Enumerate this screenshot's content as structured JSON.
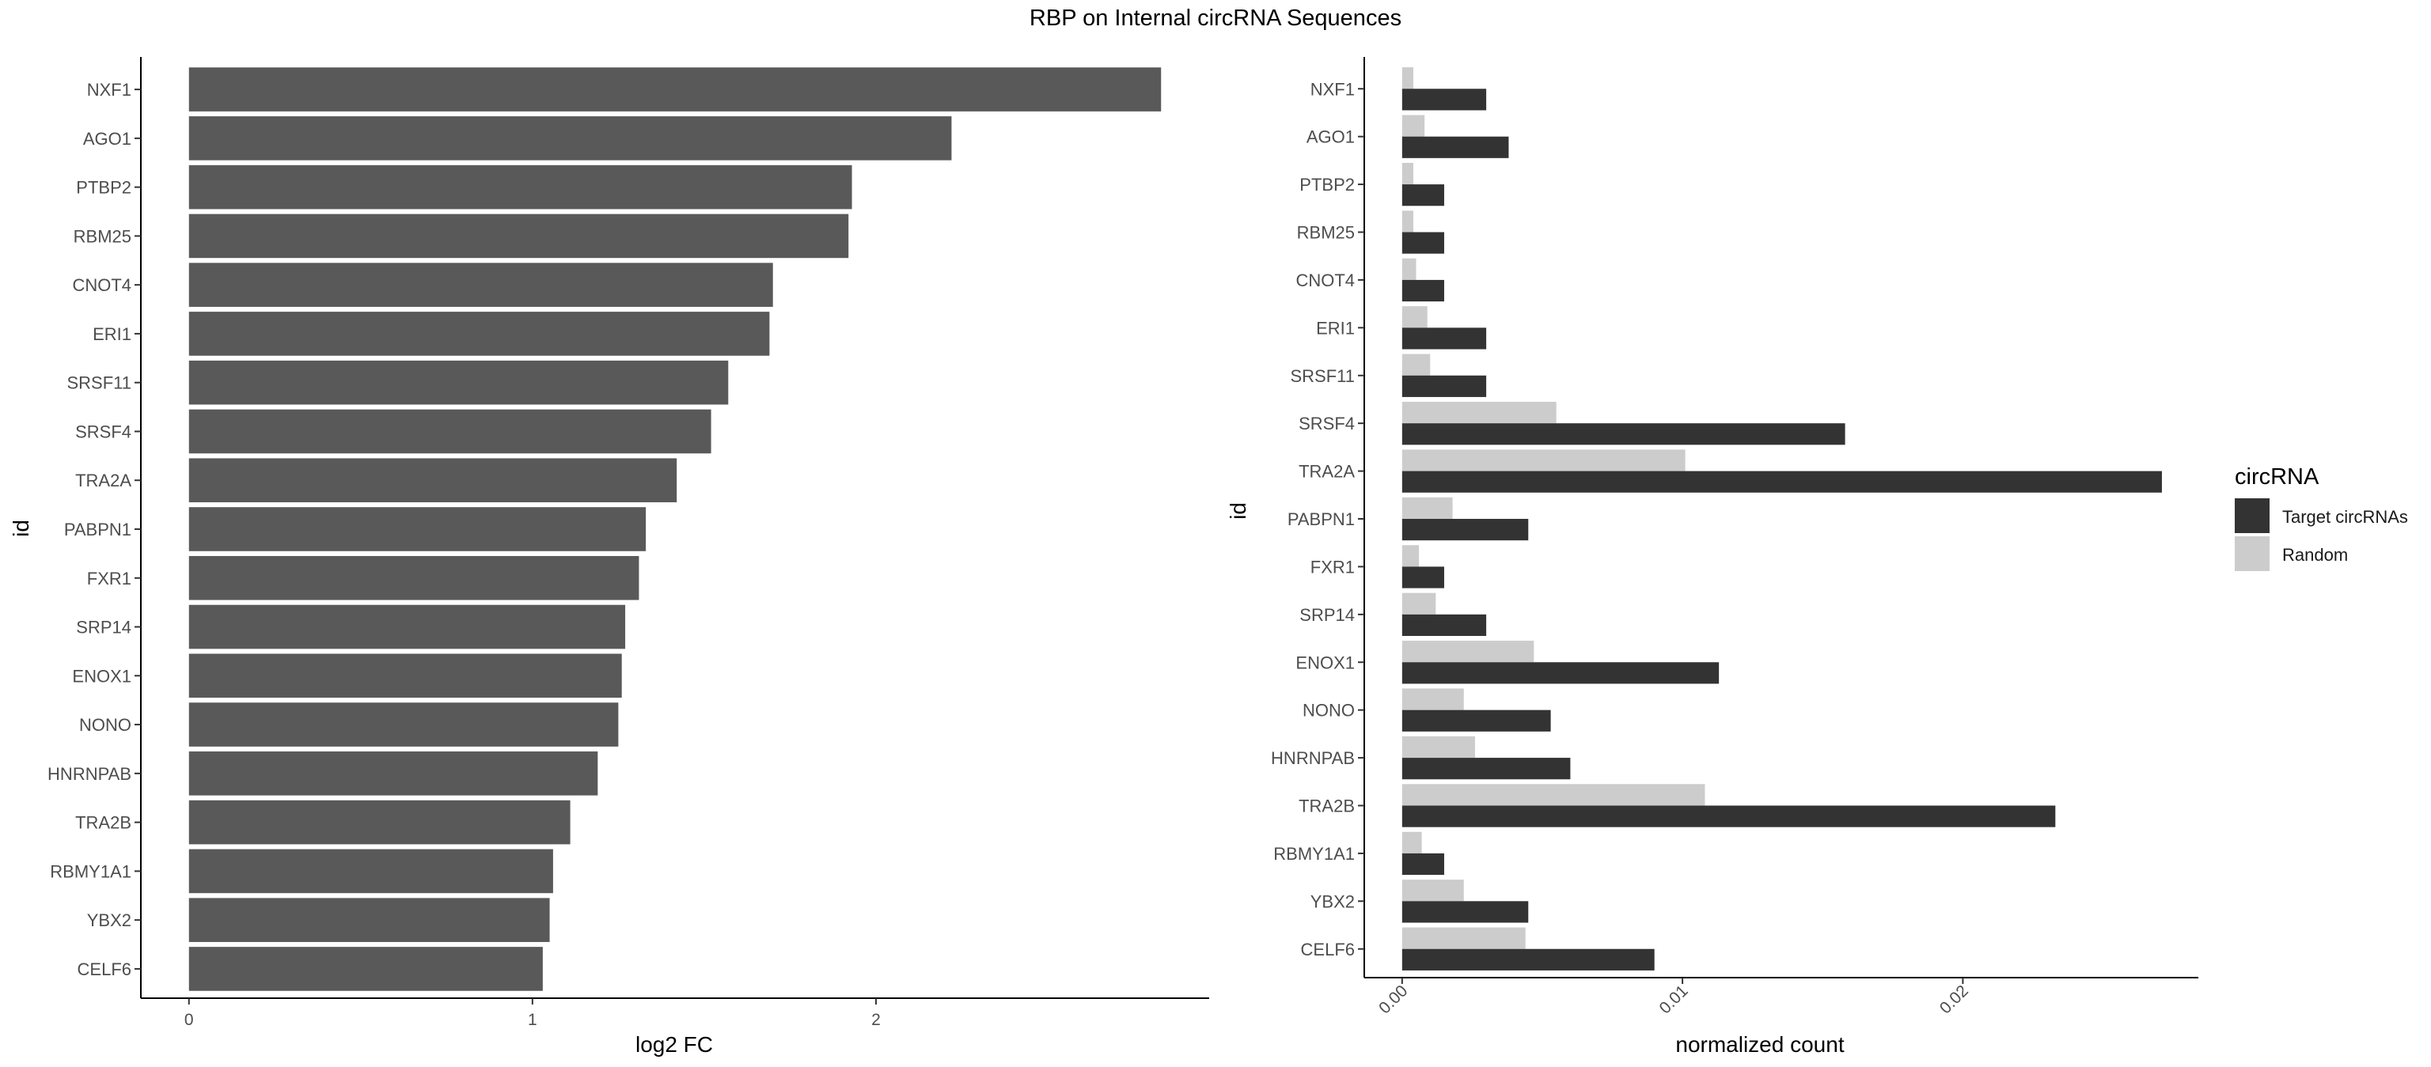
{
  "title": "RBP on Internal circRNA Sequences",
  "chart_data": [
    {
      "type": "bar",
      "orientation": "horizontal",
      "categories": [
        "NXF1",
        "AGO1",
        "PTBP2",
        "RBM25",
        "CNOT4",
        "ERI1",
        "SRSF11",
        "SRSF4",
        "TRA2A",
        "PABPN1",
        "FXR1",
        "SRP14",
        "ENOX1",
        "NONO",
        "HNRNPAB",
        "TRA2B",
        "RBMY1A1",
        "YBX2",
        "CELF6"
      ],
      "values": [
        2.83,
        2.22,
        1.93,
        1.92,
        1.7,
        1.69,
        1.57,
        1.52,
        1.42,
        1.33,
        1.31,
        1.27,
        1.26,
        1.25,
        1.19,
        1.11,
        1.06,
        1.05,
        1.03
      ],
      "xlabel": "log2 FC",
      "ylabel": "id",
      "xlim": [
        -0.14,
        2.97
      ],
      "xticks": [
        0,
        1,
        2
      ],
      "xtick_labels": [
        "0",
        "1",
        "2"
      ],
      "grid": false,
      "colors": {
        "bar": "#595959"
      }
    },
    {
      "type": "bar",
      "orientation": "horizontal",
      "categories": [
        "NXF1",
        "AGO1",
        "PTBP2",
        "RBM25",
        "CNOT4",
        "ERI1",
        "SRSF11",
        "SRSF4",
        "TRA2A",
        "PABPN1",
        "FXR1",
        "SRP14",
        "ENOX1",
        "NONO",
        "HNRNPAB",
        "TRA2B",
        "RBMY1A1",
        "YBX2",
        "CELF6"
      ],
      "series": [
        {
          "name": "Target circRNAs",
          "values": [
            0.003,
            0.0038,
            0.0015,
            0.0015,
            0.0015,
            0.003,
            0.003,
            0.0158,
            0.0271,
            0.0045,
            0.0015,
            0.003,
            0.0113,
            0.0053,
            0.006,
            0.0233,
            0.0015,
            0.0045,
            0.009
          ]
        },
        {
          "name": "Random",
          "values": [
            0.0004,
            0.0008,
            0.0004,
            0.0004,
            0.0005,
            0.0009,
            0.001,
            0.0055,
            0.0101,
            0.0018,
            0.0006,
            0.0012,
            0.0047,
            0.0022,
            0.0026,
            0.0108,
            0.0007,
            0.0022,
            0.0044
          ]
        }
      ],
      "xlabel": "normalized count",
      "ylabel": "id",
      "xlim": [
        -0.00135,
        0.0284
      ],
      "xticks": [
        0.0,
        0.01,
        0.02
      ],
      "xtick_labels": [
        "0.00",
        "0.01",
        "0.02"
      ],
      "grid": false,
      "legend": {
        "title": "circRNA",
        "placement": "right"
      },
      "colors": {
        "Target circRNAs": "#333333",
        "Random": "#cccccc"
      }
    }
  ]
}
